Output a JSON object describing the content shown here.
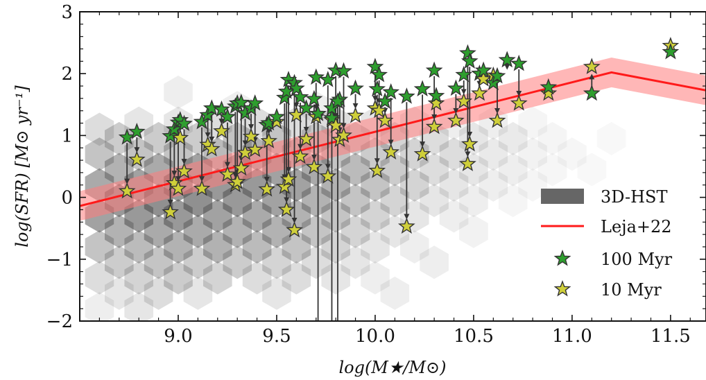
{
  "chart_data": {
    "type": "scatter",
    "xlabel": "log(M★/M⊙)",
    "ylabel": "log(SFR) [M⊙ yr⁻¹]",
    "xlim": [
      8.5,
      11.68
    ],
    "ylim": [
      -2,
      3
    ],
    "x_ticks": [
      9.0,
      9.5,
      10.0,
      10.5,
      11.0,
      11.5
    ],
    "x_tick_labels": [
      "9.0",
      "9.5",
      "10.0",
      "10.5",
      "11.0",
      "11.5"
    ],
    "y_ticks": [
      -2,
      -1,
      0,
      1,
      2,
      3
    ],
    "y_tick_labels": [
      "−2",
      "−1",
      "0",
      "1",
      "2",
      "3"
    ],
    "grid": false,
    "legend_position": "lower-right",
    "legend": [
      {
        "label": "3D-HST",
        "kind": "hexbin",
        "color": "#666666"
      },
      {
        "label": "Leja+22",
        "kind": "line",
        "color": "#ff1a1a"
      },
      {
        "label": "100 Myr",
        "kind": "marker",
        "color": "#2e9e2e"
      },
      {
        "label": "10 Myr",
        "kind": "marker",
        "color": "#cfcf3a"
      }
    ],
    "colors": {
      "line": "#ff1a1a",
      "band": "#ff7b7b",
      "star_100": "#2e9e2e",
      "star_10": "#cfcf3a",
      "hex": "#555555"
    },
    "leja_line": {
      "x": [
        8.5,
        11.2,
        11.68
      ],
      "y": [
        -0.14,
        2.02,
        1.73
      ],
      "band_halfwidth": 0.24
    },
    "hexbin_3dhst": [
      [
        8.6,
        -0.3,
        0.55
      ],
      [
        8.6,
        0.2,
        0.5
      ],
      [
        8.6,
        0.7,
        0.35
      ],
      [
        8.6,
        1.1,
        0.2
      ],
      [
        8.6,
        -0.8,
        0.35
      ],
      [
        8.6,
        -1.3,
        0.2
      ],
      [
        8.6,
        -1.8,
        0.1
      ],
      [
        8.7,
        -0.05,
        0.6
      ],
      [
        8.7,
        0.45,
        0.45
      ],
      [
        8.7,
        0.95,
        0.3
      ],
      [
        8.7,
        -0.55,
        0.45
      ],
      [
        8.7,
        -1.05,
        0.3
      ],
      [
        8.7,
        -1.55,
        0.15
      ],
      [
        8.8,
        -0.3,
        0.6
      ],
      [
        8.8,
        0.2,
        0.55
      ],
      [
        8.8,
        0.7,
        0.35
      ],
      [
        8.8,
        1.2,
        0.15
      ],
      [
        8.8,
        -0.8,
        0.4
      ],
      [
        8.8,
        -1.3,
        0.25
      ],
      [
        8.8,
        -1.8,
        0.15
      ],
      [
        8.9,
        -0.05,
        0.65
      ],
      [
        8.9,
        0.45,
        0.5
      ],
      [
        8.9,
        0.95,
        0.3
      ],
      [
        8.9,
        -0.55,
        0.5
      ],
      [
        8.9,
        -1.05,
        0.35
      ],
      [
        8.9,
        -1.55,
        0.2
      ],
      [
        9.0,
        -0.3,
        0.6
      ],
      [
        9.0,
        0.2,
        0.6
      ],
      [
        9.0,
        0.7,
        0.35
      ],
      [
        9.0,
        1.2,
        0.15
      ],
      [
        9.0,
        -0.8,
        0.45
      ],
      [
        9.0,
        -1.3,
        0.3
      ],
      [
        9.0,
        1.7,
        0.1
      ],
      [
        9.1,
        -0.05,
        0.65
      ],
      [
        9.1,
        0.45,
        0.55
      ],
      [
        9.1,
        0.95,
        0.3
      ],
      [
        9.1,
        -0.55,
        0.5
      ],
      [
        9.1,
        -1.05,
        0.3
      ],
      [
        9.1,
        -1.55,
        0.15
      ],
      [
        9.2,
        -0.3,
        0.55
      ],
      [
        9.2,
        0.2,
        0.6
      ],
      [
        9.2,
        0.7,
        0.4
      ],
      [
        9.2,
        1.2,
        0.2
      ],
      [
        9.2,
        -0.8,
        0.45
      ],
      [
        9.2,
        -1.3,
        0.25
      ],
      [
        9.3,
        -0.05,
        0.6
      ],
      [
        9.3,
        0.45,
        0.55
      ],
      [
        9.3,
        0.95,
        0.35
      ],
      [
        9.3,
        -0.55,
        0.45
      ],
      [
        9.3,
        -1.05,
        0.3
      ],
      [
        9.3,
        1.45,
        0.1
      ],
      [
        9.4,
        -0.3,
        0.5
      ],
      [
        9.4,
        0.2,
        0.6
      ],
      [
        9.4,
        0.7,
        0.45
      ],
      [
        9.4,
        1.2,
        0.2
      ],
      [
        9.4,
        -0.8,
        0.4
      ],
      [
        9.4,
        -1.3,
        0.2
      ],
      [
        9.5,
        -0.05,
        0.55
      ],
      [
        9.5,
        0.45,
        0.55
      ],
      [
        9.5,
        0.95,
        0.35
      ],
      [
        9.5,
        -0.55,
        0.45
      ],
      [
        9.5,
        -1.05,
        0.25
      ],
      [
        9.5,
        -1.55,
        0.15
      ],
      [
        9.6,
        -0.3,
        0.45
      ],
      [
        9.6,
        0.2,
        0.55
      ],
      [
        9.6,
        0.7,
        0.4
      ],
      [
        9.6,
        1.2,
        0.2
      ],
      [
        9.6,
        -0.8,
        0.35
      ],
      [
        9.6,
        -1.3,
        0.2
      ],
      [
        9.7,
        -0.05,
        0.45
      ],
      [
        9.7,
        0.45,
        0.5
      ],
      [
        9.7,
        0.95,
        0.35
      ],
      [
        9.7,
        -0.55,
        0.35
      ],
      [
        9.7,
        -1.05,
        0.2
      ],
      [
        9.7,
        1.45,
        0.1
      ],
      [
        9.8,
        -0.3,
        0.35
      ],
      [
        9.8,
        0.2,
        0.45
      ],
      [
        9.8,
        0.7,
        0.35
      ],
      [
        9.8,
        1.2,
        0.2
      ],
      [
        9.8,
        -0.8,
        0.25
      ],
      [
        9.8,
        -1.3,
        0.15
      ],
      [
        9.9,
        -0.05,
        0.35
      ],
      [
        9.9,
        0.45,
        0.4
      ],
      [
        9.9,
        0.95,
        0.3
      ],
      [
        9.9,
        -0.55,
        0.25
      ],
      [
        9.9,
        -1.05,
        0.15
      ],
      [
        10.0,
        -0.3,
        0.25
      ],
      [
        10.0,
        0.2,
        0.35
      ],
      [
        10.0,
        0.7,
        0.3
      ],
      [
        10.0,
        1.2,
        0.15
      ],
      [
        10.0,
        -0.8,
        0.15
      ],
      [
        10.0,
        -1.3,
        0.1
      ],
      [
        10.1,
        -0.05,
        0.25
      ],
      [
        10.1,
        0.45,
        0.3
      ],
      [
        10.1,
        0.95,
        0.25
      ],
      [
        10.1,
        -0.55,
        0.15
      ],
      [
        10.1,
        -1.55,
        0.1
      ],
      [
        10.2,
        -0.3,
        0.15
      ],
      [
        10.2,
        0.2,
        0.25
      ],
      [
        10.2,
        0.7,
        0.25
      ],
      [
        10.2,
        1.2,
        0.15
      ],
      [
        10.2,
        -0.8,
        0.1
      ],
      [
        10.3,
        -0.05,
        0.15
      ],
      [
        10.3,
        0.45,
        0.2
      ],
      [
        10.3,
        0.95,
        0.2
      ],
      [
        10.3,
        -1.05,
        0.1
      ],
      [
        10.4,
        0.2,
        0.15
      ],
      [
        10.4,
        0.7,
        0.2
      ],
      [
        10.4,
        1.2,
        0.1
      ],
      [
        10.4,
        -0.3,
        0.1
      ],
      [
        10.5,
        0.45,
        0.15
      ],
      [
        10.5,
        0.95,
        0.15
      ],
      [
        10.5,
        -0.05,
        0.1
      ],
      [
        10.5,
        -0.55,
        0.08
      ],
      [
        10.6,
        0.2,
        0.1
      ],
      [
        10.6,
        0.7,
        0.12
      ],
      [
        10.6,
        1.2,
        0.1
      ],
      [
        10.7,
        0.45,
        0.1
      ],
      [
        10.7,
        0.95,
        0.12
      ],
      [
        10.7,
        -0.05,
        0.06
      ],
      [
        10.8,
        0.7,
        0.08
      ],
      [
        10.8,
        0.2,
        0.06
      ],
      [
        10.8,
        1.2,
        0.06
      ],
      [
        10.9,
        0.95,
        0.06
      ],
      [
        10.9,
        0.45,
        0.05
      ],
      [
        11.0,
        0.7,
        0.05
      ],
      [
        11.1,
        0.45,
        0.04
      ],
      [
        11.2,
        0.95,
        0.04
      ]
    ],
    "galaxies": [
      {
        "x": 8.74,
        "sfr100": 0.97,
        "sfr10": 0.1
      },
      {
        "x": 8.79,
        "sfr100": 1.06,
        "sfr10": 0.61
      },
      {
        "x": 8.96,
        "sfr100": 0.99,
        "sfr10": -0.24
      },
      {
        "x": 8.98,
        "sfr100": 1.1,
        "sfr10": 0.23
      },
      {
        "x": 9.0,
        "sfr100": 1.21,
        "sfr10": 0.14
      },
      {
        "x": 9.01,
        "sfr100": 1.25,
        "sfr10": 0.96
      },
      {
        "x": 9.03,
        "sfr100": 1.19,
        "sfr10": 0.42
      },
      {
        "x": 9.12,
        "sfr100": 1.22,
        "sfr10": 0.14
      },
      {
        "x": 9.15,
        "sfr100": 1.33,
        "sfr10": 0.85
      },
      {
        "x": 9.17,
        "sfr100": 1.44,
        "sfr10": 0.78
      },
      {
        "x": 9.22,
        "sfr100": 1.42,
        "sfr10": 1.07
      },
      {
        "x": 9.25,
        "sfr100": 1.3,
        "sfr10": 0.37
      },
      {
        "x": 9.29,
        "sfr100": 1.47,
        "sfr10": 0.2
      },
      {
        "x": 9.3,
        "sfr100": 1.52,
        "sfr10": 0.25
      },
      {
        "x": 9.32,
        "sfr100": 1.53,
        "sfr10": 0.47
      },
      {
        "x": 9.34,
        "sfr100": 1.36,
        "sfr10": 0.72
      },
      {
        "x": 9.37,
        "sfr100": 1.44,
        "sfr10": 0.98
      },
      {
        "x": 9.39,
        "sfr100": 1.52,
        "sfr10": 0.77
      },
      {
        "x": 9.45,
        "sfr100": 1.17,
        "sfr10": 0.13
      },
      {
        "x": 9.46,
        "sfr100": 1.2,
        "sfr10": 0.91
      },
      {
        "x": 9.5,
        "sfr100": 1.3,
        "sfr10": 1.22
      },
      {
        "x": 9.54,
        "sfr100": 1.61,
        "sfr10": 0.17
      },
      {
        "x": 9.55,
        "sfr100": 1.71,
        "sfr10": -0.2
      },
      {
        "x": 9.56,
        "sfr100": 1.9,
        "sfr10": 0.29
      },
      {
        "x": 9.59,
        "sfr100": 1.85,
        "sfr10": -0.53
      },
      {
        "x": 9.6,
        "sfr100": 1.76,
        "sfr10": 1.33
      },
      {
        "x": 9.62,
        "sfr100": 1.62,
        "sfr10": 0.66
      },
      {
        "x": 9.65,
        "sfr100": 1.44,
        "sfr10": 0.94
      },
      {
        "x": 9.69,
        "sfr100": 1.59,
        "sfr10": 0.49
      },
      {
        "x": 9.7,
        "sfr100": 1.94,
        "sfr10": 1.3
      },
      {
        "x": 9.76,
        "sfr100": 1.9,
        "sfr10": 0.34
      },
      {
        "x": 9.78,
        "sfr100": 1.28,
        "sfr10": 1.25
      },
      {
        "x": 9.8,
        "sfr100": 2.05,
        "sfr10": 1.16
      },
      {
        "x": 9.82,
        "sfr100": 1.58,
        "sfr10": 0.93
      },
      {
        "x": 9.84,
        "sfr100": 2.04,
        "sfr10": 1.0
      },
      {
        "x": 9.9,
        "sfr100": 1.76,
        "sfr10": 1.32
      },
      {
        "x": 10.0,
        "sfr100": 2.11,
        "sfr10": 1.44
      },
      {
        "x": 10.01,
        "sfr100": 1.75,
        "sfr10": 0.43
      },
      {
        "x": 10.02,
        "sfr100": 1.98,
        "sfr10": 1.4
      },
      {
        "x": 10.05,
        "sfr100": 1.55,
        "sfr10": 1.24
      },
      {
        "x": 10.08,
        "sfr100": 1.7,
        "sfr10": 0.73
      },
      {
        "x": 10.16,
        "sfr100": 1.63,
        "sfr10": -0.47
      },
      {
        "x": 10.24,
        "sfr100": 1.75,
        "sfr10": 0.7
      },
      {
        "x": 10.3,
        "sfr100": 2.05,
        "sfr10": 1.14
      },
      {
        "x": 10.31,
        "sfr100": 1.64,
        "sfr10": 1.52
      },
      {
        "x": 10.41,
        "sfr100": 1.76,
        "sfr10": 1.24
      },
      {
        "x": 10.45,
        "sfr100": 1.98,
        "sfr10": 1.55
      },
      {
        "x": 10.47,
        "sfr100": 2.33,
        "sfr10": 0.54
      },
      {
        "x": 10.48,
        "sfr100": 2.2,
        "sfr10": 0.86
      },
      {
        "x": 10.53,
        "sfr100": 2.0,
        "sfr10": 1.68
      },
      {
        "x": 10.55,
        "sfr100": 2.05,
        "sfr10": 1.91
      },
      {
        "x": 10.6,
        "sfr100": 1.85,
        "sfr10": 1.97
      },
      {
        "x": 10.62,
        "sfr100": 1.96,
        "sfr10": 1.24
      },
      {
        "x": 10.67,
        "sfr100": 2.22,
        "sfr10": 2.22
      },
      {
        "x": 10.73,
        "sfr100": 2.16,
        "sfr10": 1.52
      },
      {
        "x": 10.88,
        "sfr100": 1.78,
        "sfr10": 1.68
      },
      {
        "x": 11.1,
        "sfr100": 1.68,
        "sfr10": 2.11
      },
      {
        "x": 11.5,
        "sfr100": 2.35,
        "sfr10": 2.45
      }
    ],
    "offscale_drops": [
      {
        "x": 9.71,
        "sfr100": 1.35
      },
      {
        "x": 9.78,
        "sfr100": 1.44
      },
      {
        "x": 9.81,
        "sfr100": 1.55
      }
    ]
  }
}
